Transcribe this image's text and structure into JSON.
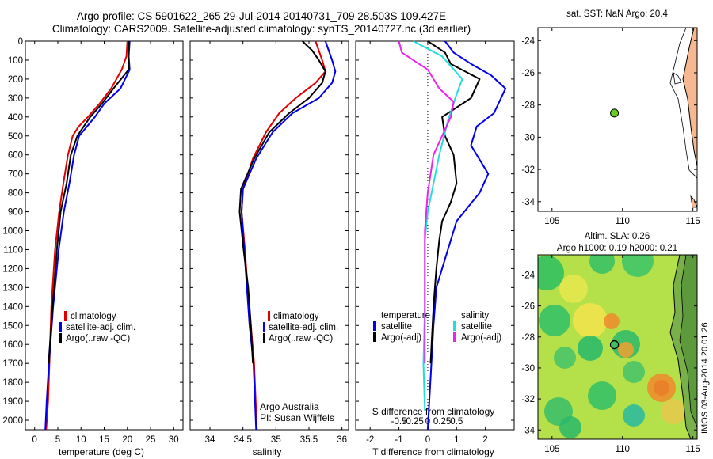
{
  "header": {
    "title_line1": "Argo profile: CS 5901622_265 29-Jul-2014 20140731_709 28.503S 109.427E",
    "title_line2": "Climatology: CARS2009. Satellite-adjusted climatology: synTS_20140727.nc (3d earlier)"
  },
  "stamp": "IMOS 03-Aug-2014 20:01:26",
  "colors": {
    "climatology": "#e00000",
    "satellite": "#0000ee",
    "argo": "#000000",
    "sal_satellite": "#22dddd",
    "sal_argo": "#ee22ee",
    "land": "#f5b890"
  },
  "chart_data": [
    {
      "id": "temperature",
      "type": "line",
      "xlabel": "temperature (deg C)",
      "xlim": [
        -2,
        32
      ],
      "ylim": [
        0,
        2050
      ],
      "x_ticks": [
        0,
        5,
        10,
        15,
        20,
        25,
        30
      ],
      "y_ticks": [
        0,
        100,
        200,
        300,
        400,
        500,
        600,
        700,
        800,
        900,
        1000,
        1100,
        1200,
        1300,
        1400,
        1500,
        1600,
        1700,
        1800,
        1900,
        2000
      ],
      "legend": [
        "climatology",
        "satellite-adj. clim.",
        "Argo(..raw -QC)"
      ],
      "series": [
        {
          "name": "climatology",
          "x": [
            20.0,
            19.8,
            18.8,
            16.5,
            14.0,
            11.5,
            9.5,
            8.2,
            7.2,
            6.2,
            5.3,
            4.4,
            3.6,
            3.2,
            2.9,
            2.5
          ],
          "y": [
            0,
            80,
            150,
            250,
            330,
            400,
            450,
            500,
            600,
            750,
            900,
            1100,
            1400,
            1700,
            1900,
            2050
          ]
        },
        {
          "name": "satellite-adj. clim.",
          "x": [
            20.5,
            20.3,
            20.5,
            18.5,
            15.0,
            13.0,
            11.3,
            9.6,
            8.5,
            7.5,
            6.3,
            5.2,
            4.0,
            3.1,
            2.6,
            2.3
          ],
          "y": [
            0,
            80,
            150,
            250,
            330,
            400,
            450,
            500,
            600,
            750,
            900,
            1100,
            1400,
            1700,
            1900,
            2050
          ]
        },
        {
          "name": "Argo(..raw -QC)",
          "x": [
            20.3,
            20.2,
            20.3,
            17.0,
            14.5,
            12.0,
            10.6,
            9.2,
            7.8,
            6.9,
            5.6,
            4.8,
            3.9,
            3.3,
            3.0
          ],
          "y": [
            0,
            80,
            150,
            250,
            330,
            400,
            450,
            500,
            600,
            750,
            900,
            1100,
            1400,
            1600,
            1700
          ]
        }
      ]
    },
    {
      "id": "salinity",
      "type": "line",
      "xlabel": "salinity",
      "xlim": [
        33.7,
        36.1
      ],
      "ylim": [
        0,
        2050
      ],
      "x_ticks": [
        34,
        34.5,
        35,
        35.5,
        36
      ],
      "x_tick_labels": [
        "34",
        "34.5",
        "35",
        "35.5",
        "36"
      ],
      "legend": [
        "climatology",
        "satellite-adj. clim.",
        "Argo(..raw -QC)"
      ],
      "annotations": [
        "Argo Australia",
        "PI: Susan Wijffels"
      ],
      "series": [
        {
          "name": "climatology",
          "x": [
            35.6,
            35.65,
            35.7,
            35.75,
            35.6,
            35.3,
            35.05,
            34.85,
            34.65,
            34.5,
            34.48,
            34.53,
            34.57,
            34.62,
            34.67,
            34.71
          ],
          "y": [
            0,
            50,
            100,
            160,
            220,
            300,
            380,
            480,
            620,
            780,
            900,
            1100,
            1300,
            1500,
            1700,
            2050
          ]
        },
        {
          "name": "satellite-adj. clim.",
          "x": [
            35.75,
            35.8,
            35.85,
            35.9,
            35.85,
            35.65,
            35.25,
            34.95,
            34.7,
            34.5,
            34.48,
            34.52,
            34.56,
            34.6,
            34.66,
            34.7
          ],
          "y": [
            0,
            50,
            100,
            160,
            220,
            300,
            380,
            480,
            620,
            780,
            900,
            1100,
            1300,
            1500,
            1700,
            2050
          ]
        },
        {
          "name": "Argo(..raw -QC)",
          "x": [
            35.4,
            35.55,
            35.65,
            35.75,
            35.7,
            35.5,
            35.2,
            34.9,
            34.67,
            34.47,
            34.45,
            34.51,
            34.58,
            34.62,
            34.65
          ],
          "y": [
            0,
            50,
            100,
            160,
            220,
            300,
            380,
            480,
            620,
            780,
            900,
            1100,
            1300,
            1500,
            1700
          ]
        }
      ]
    },
    {
      "id": "difference",
      "type": "line",
      "xlabel": "T difference from climatology",
      "xlabel_top": "S difference from climatology",
      "xlim": [
        -2.5,
        3
      ],
      "ylim": [
        0,
        2050
      ],
      "x_ticks": [
        -2,
        -1,
        0,
        1,
        2
      ],
      "s_ticks": [
        -0.5,
        -0.25,
        0,
        0.25,
        0.5
      ],
      "s_tick_labels": [
        "-0.5",
        "-0.25",
        "0",
        "0.25",
        "0.5"
      ],
      "legend_temperature": [
        "temperature",
        "satellite",
        "Argo(-adj)"
      ],
      "legend_salinity": [
        "salinity",
        "satellite",
        "Argo(-adj)"
      ],
      "series": [
        {
          "name": "T satellite",
          "x": [
            0.6,
            0.9,
            1.5,
            2.2,
            2.7,
            2.3,
            1.7,
            1.5,
            2.1,
            1.8,
            1.0,
            0.8,
            0.6,
            0.3,
            0.2,
            0.0
          ],
          "y": [
            0,
            60,
            120,
            180,
            250,
            380,
            450,
            550,
            700,
            800,
            950,
            1050,
            1150,
            1300,
            1500,
            2050
          ]
        },
        {
          "name": "T Argo(-adj)",
          "x": [
            0.0,
            0.6,
            0.8,
            1.8,
            1.5,
            0.5,
            0.6,
            0.9,
            1.0,
            0.8,
            0.5,
            0.4,
            0.3,
            0.2,
            0.1
          ],
          "y": [
            0,
            60,
            120,
            200,
            300,
            400,
            500,
            600,
            750,
            850,
            950,
            1050,
            1200,
            1400,
            1700
          ]
        },
        {
          "name": "S satellite",
          "x": [
            -0.5,
            0.5,
            1.2,
            1.0,
            0.7,
            0.4,
            0.2,
            0.0,
            -0.1,
            -0.1,
            -0.1,
            -0.15,
            -0.1
          ],
          "y": [
            0,
            80,
            200,
            280,
            420,
            600,
            750,
            900,
            1050,
            1200,
            1400,
            1700,
            1950
          ]
        },
        {
          "name": "S Argo(-adj)",
          "x": [
            -1.0,
            -0.9,
            0.0,
            0.4,
            0.9,
            0.8,
            0.2,
            0.0,
            -0.1,
            -0.1,
            -0.1,
            -0.1
          ],
          "y": [
            0,
            60,
            150,
            250,
            320,
            400,
            600,
            800,
            1000,
            1200,
            1400,
            1700
          ]
        }
      ]
    },
    {
      "id": "sst_map",
      "type": "scatter",
      "title": "sat. SST: NaN  Argo: 20.4",
      "xlim": [
        104,
        115.3
      ],
      "ylim": [
        -34.6,
        -23.2
      ],
      "x_ticks": [
        105,
        110,
        115
      ],
      "y_ticks": [
        -24,
        -26,
        -28,
        -30,
        -32,
        -34
      ],
      "points": [
        {
          "lon": 109.43,
          "lat": -28.5
        }
      ]
    },
    {
      "id": "sla_map",
      "type": "heatmap",
      "title_line1": "Altim. SLA: 0.26",
      "title_line2": "Argo h1000: 0.19  h2000: 0.21",
      "xlim": [
        104,
        115.3
      ],
      "ylim": [
        -34.6,
        -22.7
      ],
      "x_ticks": [
        105,
        110,
        115
      ],
      "y_ticks": [
        -24,
        -26,
        -28,
        -30,
        -32,
        -34
      ],
      "points": [
        {
          "lon": 109.43,
          "lat": -28.5
        }
      ]
    }
  ]
}
